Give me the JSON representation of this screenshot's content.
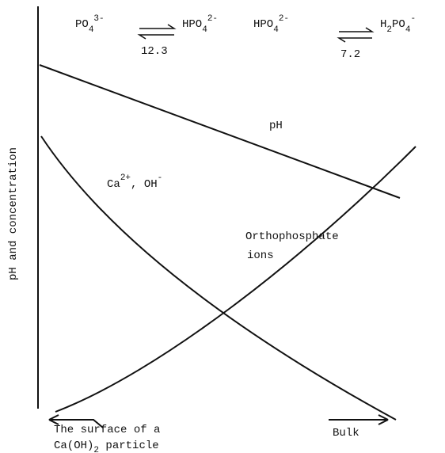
{
  "equilibria": [
    {
      "reactant": {
        "base": "PO",
        "sub": "4",
        "charge": "3-"
      },
      "product": {
        "base": "HPO",
        "sub": "4",
        "charge": "2-"
      },
      "pka": "12.3"
    },
    {
      "reactant": {
        "base": "HPO",
        "sub": "4",
        "charge": "2-"
      },
      "product": {
        "base": "H",
        "sub": "2",
        "base2": "PO",
        "sub2": "4",
        "charge": "-"
      },
      "pka": "7.2"
    }
  ],
  "y_axis_label": "pH and concentration",
  "curves": {
    "ph": "pH",
    "calcium": {
      "base": "Ca",
      "charge": "2+",
      "sep": ", OH",
      "charge2": "-"
    },
    "orthophosphate": [
      "Orthophosphate",
      "ions"
    ]
  },
  "bottom": {
    "surface": {
      "line1": "The surface of a",
      "base": "Ca(OH)",
      "sub": "2",
      "rest": " particle"
    },
    "bulk": "Bulk"
  }
}
